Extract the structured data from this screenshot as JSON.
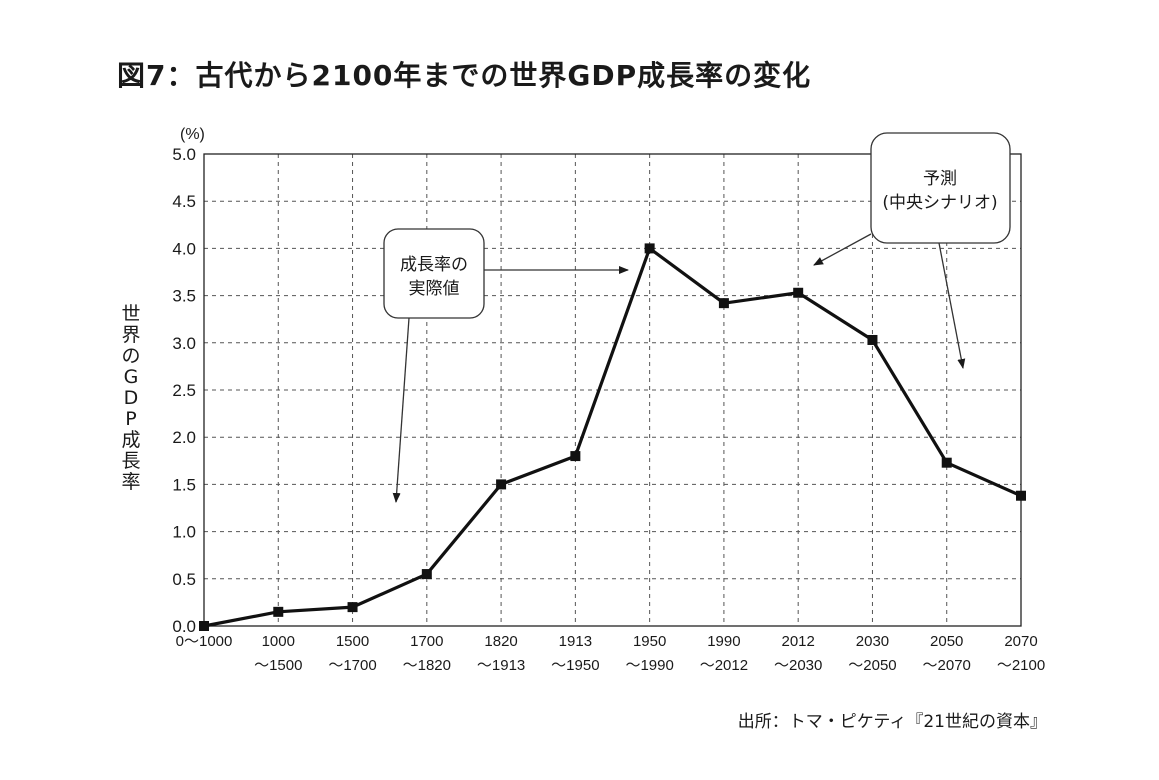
{
  "figure": {
    "title": "図7：古代から2100年までの世界GDP成長率の変化",
    "source": "出所：トマ・ピケティ『21世紀の資本』"
  },
  "chart_data": {
    "type": "line",
    "title": "図7：古代から2100年までの世界GDP成長率の変化",
    "ylabel": "世界のGDP成長率",
    "yunit": "(%)",
    "ylim": [
      0,
      5.0
    ],
    "yticks": [
      "0.0",
      "0.5",
      "1.0",
      "1.5",
      "2.0",
      "2.5",
      "3.0",
      "3.5",
      "4.0",
      "4.5",
      "5.0"
    ],
    "grid": true,
    "categories": [
      [
        "0〜1000"
      ],
      [
        "1000",
        "〜1500"
      ],
      [
        "1500",
        "〜1700"
      ],
      [
        "1700",
        "〜1820"
      ],
      [
        "1820",
        "〜1913"
      ],
      [
        "1913",
        "〜1950"
      ],
      [
        "1950",
        "〜1990"
      ],
      [
        "1990",
        "〜2012"
      ],
      [
        "2012",
        "〜2030"
      ],
      [
        "2030",
        "〜2050"
      ],
      [
        "2050",
        "〜2070"
      ],
      [
        "2070",
        "〜2100"
      ]
    ],
    "series": [
      {
        "values": [
          0.0,
          0.15,
          0.2,
          0.55,
          1.5,
          1.8,
          4.0,
          3.42,
          3.53,
          3.03,
          1.73,
          1.38
        ]
      }
    ],
    "series_color": "#111111",
    "annotations": [
      {
        "lines": [
          "成長率の",
          "実際値"
        ],
        "refers_to": "actual"
      },
      {
        "lines": [
          "予測",
          "(中央シナリオ)"
        ],
        "refers_to": "forecast"
      }
    ]
  }
}
